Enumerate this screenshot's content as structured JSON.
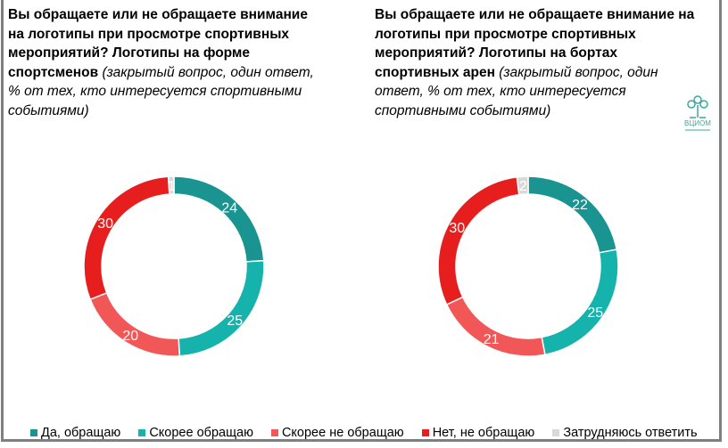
{
  "chart_data": [
    {
      "type": "pie",
      "donut": true,
      "title_bold": "Вы обращаете или не обращаете внимание на логотипы при просмотре спортивных мероприятий? Логотипы на форме спортсменов",
      "title_note": " (закрытый вопрос, один ответ, % от тех, кто интересуется спортивными событиями)",
      "categories": [
        "Да, обращаю",
        "Скорее обращаю",
        "Скорее не обращаю",
        "Нет, не обращаю",
        "Затрудняюсь ответить"
      ],
      "values": [
        24,
        25,
        20,
        30,
        1
      ]
    },
    {
      "type": "pie",
      "donut": true,
      "title_bold": "Вы обращаете или не обращаете внимание на логотипы при просмотре спортивных мероприятий? Логотипы на бортах спортивных арен",
      "title_note": " (закрытый вопрос, один ответ, % от тех, кто интересуется спортивными событиями)",
      "categories": [
        "Да, обращаю",
        "Скорее обращаю",
        "Скорее не обращаю",
        "Нет, не обращаю",
        "Затрудняюсь ответить"
      ],
      "values": [
        22,
        25,
        21,
        30,
        2
      ]
    }
  ],
  "legend": [
    {
      "label": "Да, обращаю",
      "color": "#1a9490"
    },
    {
      "label": "Скорее обращаю",
      "color": "#16b3ad"
    },
    {
      "label": "Скорее не обращаю",
      "color": "#f25757"
    },
    {
      "label": "Нет, не обращаю",
      "color": "#e61e1e"
    },
    {
      "label": "Затрудняюсь ответить",
      "color": "#d9d9d9"
    }
  ],
  "logo": {
    "text": "ВЦИОМ"
  }
}
